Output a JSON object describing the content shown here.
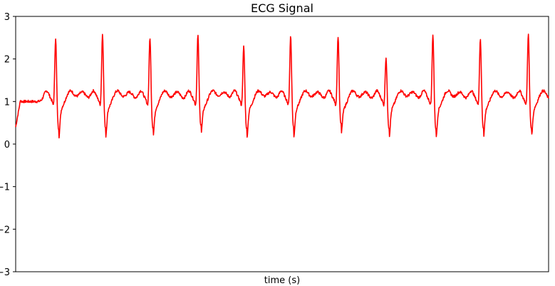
{
  "chart_data": {
    "type": "line",
    "title": "ECG Signal",
    "xlabel": "time (s)",
    "ylabel": "",
    "ylim": [
      -3,
      3
    ],
    "xlim": [
      0,
      1
    ],
    "y_ticks": [
      3,
      2,
      1,
      0,
      -1,
      -2,
      -3
    ],
    "x_tick_labels_shown": false,
    "grid": false,
    "line_color": "#ff0000",
    "series": [
      {
        "values_description_text": "",
        "baseline": 1.0,
        "beats": [
          {
            "x": 0.075,
            "peak": 2.52,
            "trough": 0.35
          },
          {
            "x": 0.163,
            "peak": 2.62,
            "trough": 0.38
          },
          {
            "x": 0.252,
            "peak": 2.53,
            "trough": 0.38
          },
          {
            "x": 0.342,
            "peak": 2.58,
            "trough": 0.45
          },
          {
            "x": 0.428,
            "peak": 2.32,
            "trough": 0.35
          },
          {
            "x": 0.516,
            "peak": 2.57,
            "trough": 0.38
          },
          {
            "x": 0.605,
            "peak": 2.56,
            "trough": 0.45
          },
          {
            "x": 0.695,
            "peak": 2.06,
            "trough": 0.37
          },
          {
            "x": 0.783,
            "peak": 2.59,
            "trough": 0.35
          },
          {
            "x": 0.872,
            "peak": 2.51,
            "trough": 0.37
          },
          {
            "x": 0.962,
            "peak": 2.61,
            "trough": 0.37
          }
        ]
      }
    ]
  }
}
